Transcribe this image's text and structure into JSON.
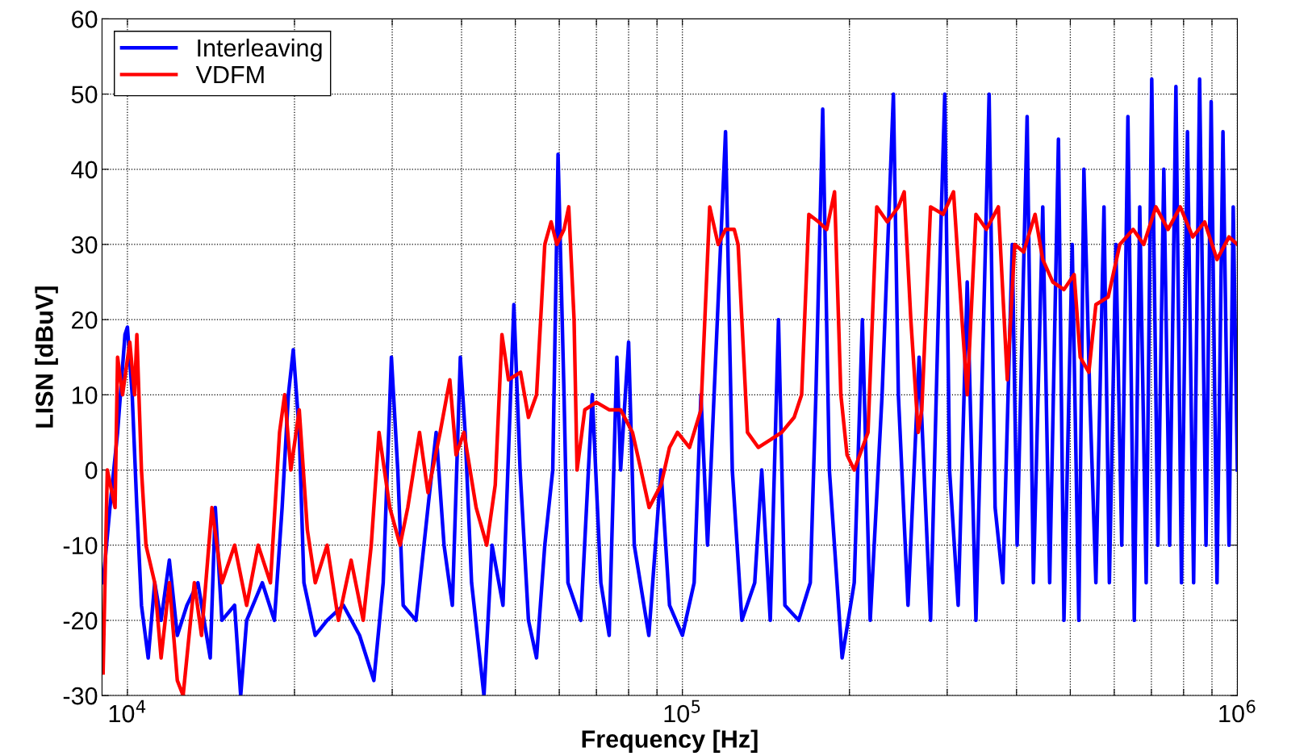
{
  "chart_data": {
    "type": "line",
    "xlabel": "Frequency [Hz]",
    "ylabel": "LISN [dBuV]",
    "log": "x",
    "grid": true,
    "legend": "top left",
    "line_style": "solid",
    "marker": "none",
    "xlim": [
      9000,
      1000000
    ],
    "xticks": [
      {
        "value": 10000,
        "label": "10$^{4}$"
      },
      {
        "value": 20000,
        "label": null
      },
      {
        "value": 30000,
        "label": null
      },
      {
        "value": 40000,
        "label": null
      },
      {
        "value": 50000,
        "label": null
      },
      {
        "value": 60000,
        "label": null
      },
      {
        "value": 70000,
        "label": null
      },
      {
        "value": 80000,
        "label": null
      },
      {
        "value": 90000,
        "label": null
      },
      {
        "value": 100000,
        "label": "10$^{5}$"
      },
      {
        "value": 200000,
        "label": null
      },
      {
        "value": 300000,
        "label": null
      },
      {
        "value": 400000,
        "label": null
      },
      {
        "value": 500000,
        "label": null
      },
      {
        "value": 600000,
        "label": null
      },
      {
        "value": 700000,
        "label": null
      },
      {
        "value": 800000,
        "label": null
      },
      {
        "value": 900000,
        "label": null
      },
      {
        "value": 1000000,
        "label": "10$^{6}$"
      }
    ],
    "ylim": [
      -30,
      60
    ],
    "yticks": [
      -30,
      -20,
      -10,
      0,
      10,
      20,
      30,
      40,
      50,
      60
    ],
    "series": [
      {
        "name": "Interleaving",
        "color": "#0000ff",
        "x": [
          9040,
          9300,
          9600,
          9900,
          10000,
          10200,
          10400,
          10600,
          10900,
          11200,
          11500,
          11900,
          12300,
          12800,
          13400,
          14100,
          14400,
          14800,
          15600,
          16000,
          16400,
          17500,
          18400,
          19000,
          19500,
          19900,
          20400,
          20800,
          21800,
          22900,
          24500,
          26200,
          27800,
          28900,
          29900,
          30700,
          31400,
          33100,
          34800,
          36000,
          37200,
          38500,
          39800,
          40600,
          41700,
          43900,
          45400,
          47500,
          49700,
          51000,
          52800,
          54600,
          56500,
          58400,
          59700,
          61200,
          62200,
          65600,
          68800,
          71300,
          73800,
          76200,
          77400,
          80000,
          81900,
          87000,
          91500,
          94800,
          100000,
          105000,
          108000,
          111000,
          119600,
          123000,
          128000,
          135000,
          139000,
          144000,
          149000,
          153000,
          162000,
          170000,
          174000,
          179000,
          184000,
          194000,
          204000,
          211000,
          218000,
          229000,
          240000,
          245000,
          255000,
          267000,
          280000,
          289000,
          297000,
          303000,
          314000,
          326000,
          338000,
          349000,
          357000,
          366000,
          378000,
          393000,
          401000,
          418000,
          429000,
          446000,
          459000,
          476000,
          487000,
          504000,
          518000,
          529000,
          542000,
          556000,
          575000,
          588000,
          604000,
          619000,
          635000,
          652000,
          667000,
          685000,
          701000,
          719000,
          737000,
          755000,
          775000,
          793000,
          813000,
          834000,
          855000,
          878000,
          897000,
          919000,
          942000,
          966000,
          983000,
          1000000
        ],
        "values": [
          -15,
          -5,
          5,
          18,
          19,
          10,
          -5,
          -18,
          -25,
          -15,
          -20,
          -12,
          -22,
          -18,
          -15,
          -25,
          -5,
          -20,
          -18,
          -30,
          -20,
          -15,
          -20,
          -5,
          10,
          16,
          5,
          -15,
          -22,
          -20,
          -18,
          -22,
          -28,
          -15,
          15,
          0,
          -18,
          -20,
          -5,
          5,
          -10,
          -18,
          15,
          5,
          -15,
          -30,
          -10,
          -18,
          22,
          0,
          -20,
          -25,
          -10,
          0,
          42,
          10,
          -15,
          -20,
          10,
          -15,
          -22,
          15,
          0,
          17,
          -10,
          -22,
          0,
          -18,
          -22,
          -15,
          10,
          -10,
          45,
          0,
          -20,
          -15,
          0,
          -20,
          20,
          -18,
          -20,
          -15,
          10,
          48,
          0,
          -25,
          -15,
          20,
          -20,
          10,
          50,
          10,
          -18,
          15,
          -20,
          20,
          50,
          0,
          -18,
          25,
          -20,
          20,
          50,
          -5,
          -15,
          30,
          -10,
          47,
          -15,
          35,
          -15,
          44,
          -20,
          30,
          -20,
          40,
          10,
          -15,
          35,
          -15,
          30,
          -10,
          47,
          -20,
          35,
          -15,
          52,
          -10,
          40,
          -10,
          51,
          -15,
          45,
          -15,
          52,
          -10,
          49,
          -15,
          45,
          -10,
          35,
          0
        ]
      },
      {
        "name": "VDFM",
        "color": "#ff0000",
        "x": [
          9040,
          9200,
          9500,
          9600,
          9800,
          10100,
          10300,
          10400,
          10600,
          10800,
          11200,
          11500,
          11900,
          12300,
          12600,
          13200,
          13600,
          14200,
          14800,
          15600,
          16400,
          17200,
          18100,
          18800,
          19200,
          19700,
          20400,
          21100,
          21800,
          22900,
          24000,
          25300,
          26600,
          27500,
          28400,
          29700,
          31000,
          32000,
          33600,
          34800,
          36600,
          38100,
          39100,
          40400,
          42500,
          44400,
          46000,
          47300,
          48600,
          51100,
          52800,
          54600,
          56500,
          58000,
          59400,
          61200,
          62400,
          63800,
          64600,
          66700,
          70000,
          73800,
          77400,
          81300,
          84200,
          87100,
          91500,
          94800,
          98000,
          103000,
          108000,
          112000,
          116000,
          119600,
          124000,
          126000,
          131000,
          137000,
          144000,
          151000,
          159000,
          164000,
          169000,
          176000,
          182000,
          188000,
          193000,
          198000,
          204000,
          216000,
          224000,
          234000,
          245000,
          251000,
          258000,
          266000,
          270000,
          280000,
          295000,
          308000,
          319000,
          326000,
          338000,
          353000,
          371000,
          385000,
          397000,
          412000,
          432000,
          446000,
          465000,
          487000,
          508000,
          521000,
          540000,
          556000,
          585000,
          614000,
          649000,
          678000,
          713000,
          750000,
          789000,
          831000,
          873000,
          919000,
          966000,
          1000000
        ],
        "values": [
          -27,
          0,
          -5,
          15,
          10,
          17,
          10,
          18,
          0,
          -10,
          -15,
          -25,
          -15,
          -28,
          -30,
          -15,
          -22,
          -5,
          -15,
          -10,
          -18,
          -10,
          -15,
          5,
          10,
          0,
          8,
          -8,
          -15,
          -10,
          -20,
          -12,
          -20,
          -10,
          5,
          -5,
          -10,
          -5,
          5,
          -3,
          5,
          12,
          2,
          5,
          -5,
          -10,
          -2,
          18,
          12,
          13,
          7,
          10,
          30,
          33,
          30,
          32,
          35,
          20,
          0,
          8,
          9,
          8,
          8,
          5,
          0,
          -5,
          -2,
          3,
          5,
          3,
          8,
          35,
          30,
          32,
          32,
          30,
          5,
          3,
          4,
          5,
          7,
          10,
          34,
          33,
          32,
          37,
          10,
          2,
          0,
          5,
          35,
          33,
          35,
          37,
          20,
          5,
          8,
          35,
          34,
          37,
          20,
          10,
          34,
          32,
          35,
          12,
          30,
          29,
          34,
          28,
          25,
          24,
          26,
          15,
          13,
          22,
          23,
          30,
          32,
          30,
          35,
          32,
          35,
          31,
          33,
          28,
          31,
          30
        ]
      }
    ]
  }
}
